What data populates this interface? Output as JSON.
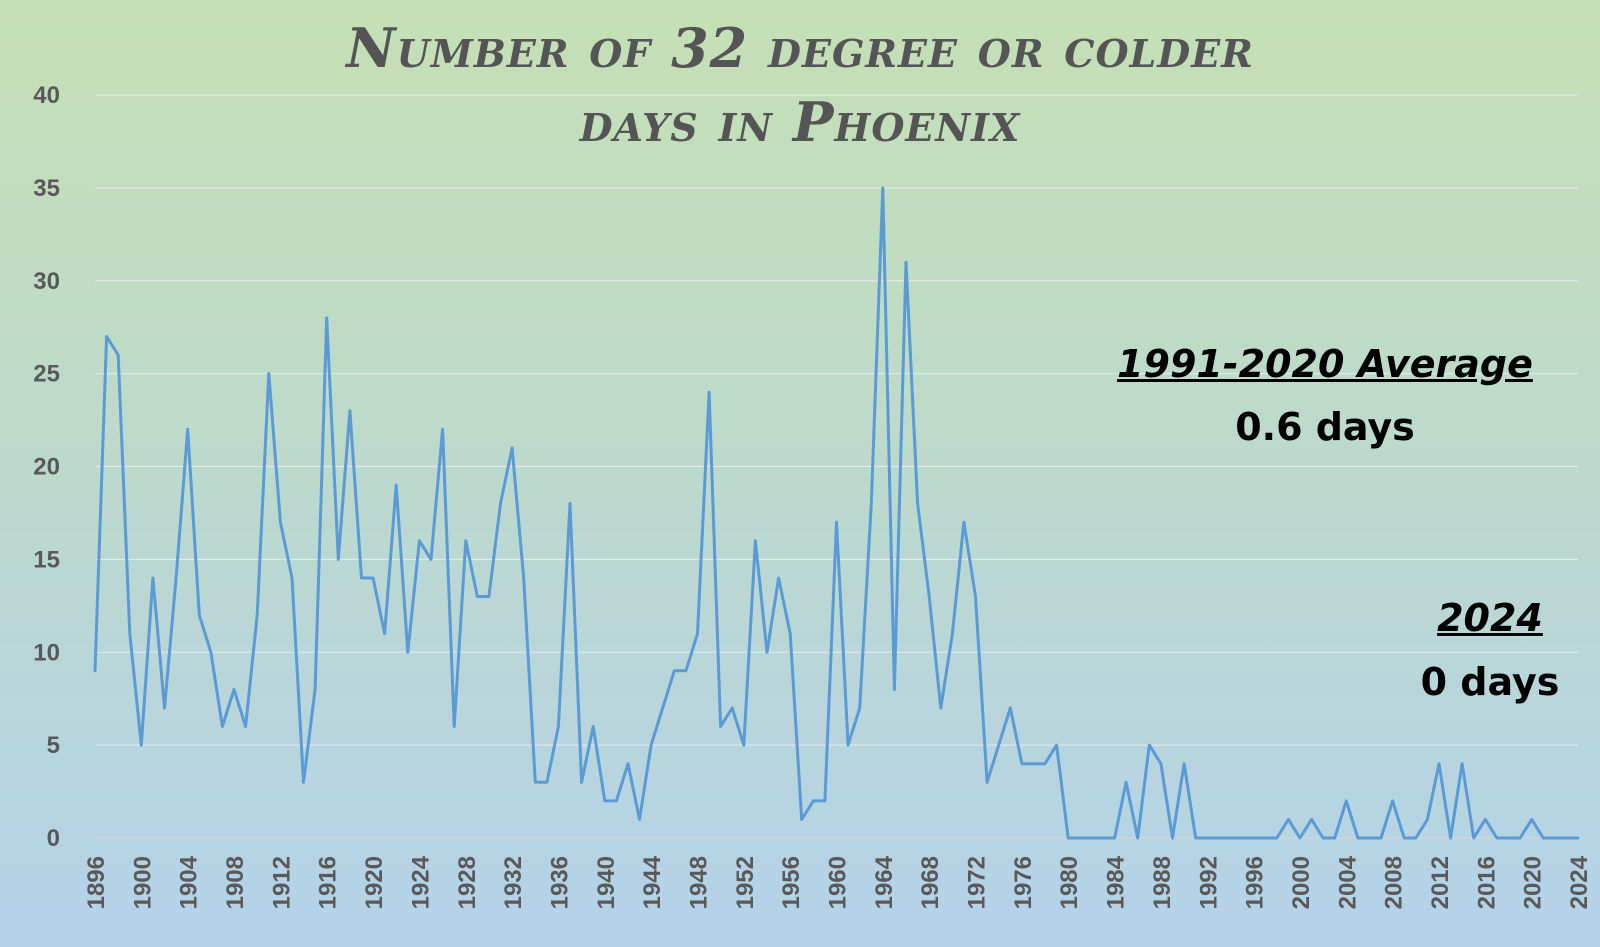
{
  "chart_data": {
    "type": "line",
    "title": "Number of 32 degree or colder days in Phoenix",
    "title_lines": [
      "Number of 32 degree or colder",
      "days in Phoenix"
    ],
    "xlabel": "",
    "ylabel": "",
    "ylim": [
      0,
      40
    ],
    "y_ticks": [
      "0",
      "5",
      "10",
      "15",
      "20",
      "25",
      "30",
      "35",
      "40"
    ],
    "x_ticks": [
      "1896",
      "1900",
      "1904",
      "1908",
      "1912",
      "1916",
      "1920",
      "1924",
      "1928",
      "1932",
      "1936",
      "1940",
      "1944",
      "1948",
      "1952",
      "1956",
      "1960",
      "1964",
      "1968",
      "1972",
      "1976",
      "1980",
      "1984",
      "1988",
      "1992",
      "1996",
      "2000",
      "2004",
      "2008",
      "2012",
      "2016",
      "2020",
      "2024"
    ],
    "grid": "horizontal",
    "legend": "none",
    "line_color": "#5b9bd5",
    "x": [
      1896,
      1897,
      1898,
      1899,
      1900,
      1901,
      1902,
      1903,
      1904,
      1905,
      1906,
      1907,
      1908,
      1909,
      1910,
      1911,
      1912,
      1913,
      1914,
      1915,
      1916,
      1917,
      1918,
      1919,
      1920,
      1921,
      1922,
      1923,
      1924,
      1925,
      1926,
      1927,
      1928,
      1929,
      1930,
      1931,
      1932,
      1933,
      1934,
      1935,
      1936,
      1937,
      1938,
      1939,
      1940,
      1941,
      1942,
      1943,
      1944,
      1945,
      1946,
      1947,
      1948,
      1949,
      1950,
      1951,
      1952,
      1953,
      1954,
      1955,
      1956,
      1957,
      1958,
      1959,
      1960,
      1961,
      1962,
      1963,
      1964,
      1965,
      1966,
      1967,
      1968,
      1969,
      1970,
      1971,
      1972,
      1973,
      1974,
      1975,
      1976,
      1977,
      1978,
      1979,
      1980,
      1981,
      1982,
      1983,
      1984,
      1985,
      1986,
      1987,
      1988,
      1989,
      1990,
      1991,
      1992,
      1993,
      1994,
      1995,
      1996,
      1997,
      1998,
      1999,
      2000,
      2001,
      2002,
      2003,
      2004,
      2005,
      2006,
      2007,
      2008,
      2009,
      2010,
      2011,
      2012,
      2013,
      2014,
      2015,
      2016,
      2017,
      2018,
      2019,
      2020,
      2021,
      2022,
      2023,
      2024
    ],
    "values": [
      9,
      27,
      26,
      11,
      5,
      14,
      7,
      14,
      22,
      12,
      10,
      6,
      8,
      6,
      12,
      25,
      17,
      14,
      3,
      8,
      28,
      15,
      23,
      14,
      14,
      11,
      19,
      10,
      16,
      15,
      22,
      6,
      16,
      13,
      13,
      18,
      21,
      14,
      3,
      3,
      6,
      18,
      3,
      6,
      2,
      2,
      4,
      1,
      5,
      7,
      9,
      9,
      11,
      24,
      6,
      7,
      5,
      16,
      10,
      14,
      11,
      1,
      2,
      2,
      17,
      5,
      7,
      18,
      35,
      8,
      31,
      18,
      13,
      7,
      11,
      17,
      13,
      3,
      5,
      7,
      4,
      4,
      4,
      5,
      0,
      0,
      0,
      0,
      0,
      3,
      0,
      5,
      4,
      0,
      4,
      0,
      0,
      0,
      0,
      0,
      0,
      0,
      0,
      1,
      0,
      1,
      0,
      0,
      2,
      0,
      0,
      0,
      2,
      0,
      0,
      1,
      4,
      0,
      4,
      0,
      1,
      0,
      0,
      0,
      1,
      0,
      0,
      0,
      0
    ]
  },
  "annotations": {
    "average": {
      "heading": "1991-2020 Average",
      "value": "0.6 days"
    },
    "current_year": {
      "heading": "2024",
      "value": "0 days"
    }
  }
}
